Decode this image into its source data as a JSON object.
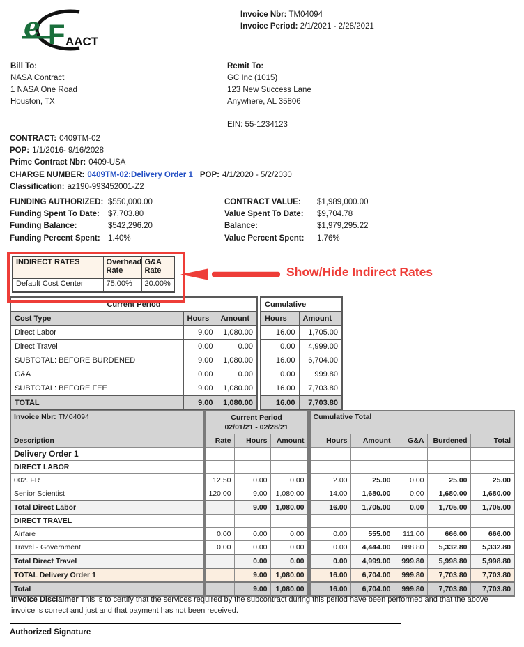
{
  "logo": {
    "e": "e",
    "f": "F",
    "aact": "AACT",
    "green": "#1a6f3c",
    "black": "#111111"
  },
  "invoice_header": {
    "nbr_label": "Invoice Nbr:",
    "nbr": "TM04094",
    "period_label": "Invoice Period:",
    "period": "2/1/2021 - 2/28/2021"
  },
  "bill_to": {
    "label": "Bill To:",
    "lines": [
      "NASA Contract",
      "1 NASA One Road",
      "Houston, TX"
    ]
  },
  "remit_to": {
    "label": "Remit To:",
    "lines": [
      "GC Inc (1015)",
      "123 New Success Lane",
      "Anywhere, AL  35806"
    ],
    "ein": "EIN: 55-1234123"
  },
  "contract": {
    "contract_label": "CONTRACT:",
    "contract_value": "0409TM-02",
    "pop_label": "POP:",
    "pop_value": "1/1/2016- 9/16/2028",
    "prime_label": "Prime Contract Nbr:",
    "prime_value": "0409-USA",
    "charge_label": "CHARGE NUMBER:",
    "charge_value": "0409TM-02:Delivery Order 1",
    "charge_pop_label": "POP:",
    "charge_pop_value": "4/1/2020  - 5/2/2030",
    "classification_label": "Classification:",
    "classification_value": "az190-993452001-Z2"
  },
  "funding": {
    "left": [
      [
        "FUNDING AUTHORIZED:",
        "$550,000.00"
      ],
      [
        "Funding Spent To Date:",
        "$7,703.80"
      ],
      [
        "Funding Balance:",
        "$542,296.20"
      ],
      [
        "Funding Percent Spent:",
        "1.40%"
      ]
    ],
    "right": [
      [
        "CONTRACT VALUE:",
        "$1,989,000.00"
      ],
      [
        "Value Spent To Date:",
        "$9,704.78"
      ],
      [
        "Balance:",
        "$1,979,295.22"
      ],
      [
        "Value Percent Spent:",
        "1.76%"
      ]
    ]
  },
  "indirect_rates": {
    "headers": [
      "INDIRECT RATES",
      "Overhead Rate",
      "G&A Rate"
    ],
    "row": [
      "Default Cost Center",
      "75.00%",
      "20.00%"
    ],
    "annotation": "Show/Hide Indirect Rates",
    "accent_color": "#ee3d38"
  },
  "summary": {
    "current_period_header": "Current Period",
    "cumulative_header": "Cumulative",
    "col_headers": [
      "Cost Type",
      "Hours",
      "Amount",
      "Hours",
      "Amount"
    ],
    "rows": [
      {
        "label": "Direct Labor",
        "cells": [
          "9.00",
          "1,080.00",
          "16.00",
          "1,705.00"
        ],
        "style": "normal"
      },
      {
        "label": "Direct Travel",
        "cells": [
          "0.00",
          "0.00",
          "0.00",
          "4,999.00"
        ],
        "style": "normal"
      },
      {
        "label": "SUBTOTAL: BEFORE BURDENED",
        "cells": [
          "9.00",
          "1,080.00",
          "16.00",
          "6,704.00"
        ],
        "style": "normal"
      },
      {
        "label": "G&A",
        "cells": [
          "0.00",
          "0.00",
          "0.00",
          "999.80"
        ],
        "style": "normal"
      },
      {
        "label": "SUBTOTAL: BEFORE FEE",
        "cells": [
          "9.00",
          "1,080.00",
          "16.00",
          "7,703.80"
        ],
        "style": "normal"
      },
      {
        "label": "TOTAL",
        "cells": [
          "9.00",
          "1,080.00",
          "16.00",
          "7,703.80"
        ],
        "style": "total"
      }
    ]
  },
  "detail": {
    "invoice_label": "Invoice Nbr:",
    "invoice_value": "TM04094",
    "current_period_title": "Current Period",
    "current_period_range": "02/01/21 - 02/28/21",
    "cumulative_title": "Cumulative Total",
    "col_headers": [
      "Description",
      "Rate",
      "Hours",
      "Amount",
      "Hours",
      "Amount",
      "G&A",
      "Burdened",
      "Total"
    ],
    "rows": [
      {
        "label": "Delivery Order 1",
        "cells": [
          "",
          "",
          "",
          "",
          "",
          "",
          "",
          ""
        ],
        "style": "group"
      },
      {
        "label": "DIRECT LABOR",
        "cells": [
          "",
          "",
          "",
          "",
          "",
          "",
          "",
          ""
        ],
        "style": "section"
      },
      {
        "label": "002. FR",
        "cells": [
          "12.50",
          "0.00",
          "0.00",
          "2.00",
          "25.00",
          "0.00",
          "25.00",
          "25.00"
        ],
        "style": "item"
      },
      {
        "label": "Senior Scientist",
        "cells": [
          "120.00",
          "9.00",
          "1,080.00",
          "14.00",
          "1,680.00",
          "0.00",
          "1,680.00",
          "1,680.00"
        ],
        "style": "item"
      },
      {
        "label": "Total Direct Labor",
        "cells": [
          "",
          "9.00",
          "1,080.00",
          "16.00",
          "1,705.00",
          "0.00",
          "1,705.00",
          "1,705.00"
        ],
        "style": "subtotal"
      },
      {
        "label": "DIRECT TRAVEL",
        "cells": [
          "",
          "",
          "",
          "",
          "",
          "",
          "",
          ""
        ],
        "style": "section"
      },
      {
        "label": "Airfare",
        "cells": [
          "0.00",
          "0.00",
          "0.00",
          "0.00",
          "555.00",
          "111.00",
          "666.00",
          "666.00"
        ],
        "style": "item"
      },
      {
        "label": "Travel - Government",
        "cells": [
          "0.00",
          "0.00",
          "0.00",
          "0.00",
          "4,444.00",
          "888.80",
          "5,332.80",
          "5,332.80"
        ],
        "style": "item"
      },
      {
        "label": "Total Direct Travel",
        "cells": [
          "",
          "0.00",
          "0.00",
          "0.00",
          "4,999.00",
          "999.80",
          "5,998.80",
          "5,998.80"
        ],
        "style": "subtotal"
      },
      {
        "label": "TOTAL Delivery Order 1",
        "cells": [
          "",
          "9.00",
          "1,080.00",
          "16.00",
          "6,704.00",
          "999.80",
          "7,703.80",
          "7,703.80"
        ],
        "style": "grandtotal"
      },
      {
        "label": "Total",
        "cells": [
          "",
          "9.00",
          "1,080.00",
          "16.00",
          "6,704.00",
          "999.80",
          "7,703.80",
          "7,703.80"
        ],
        "style": "final"
      }
    ]
  },
  "footer": {
    "disclaimer_label": "Invoice Disclaimer",
    "disclaimer_text": "This is to certify that the services required by the subcontract during this period have been performed and that the above invoice is correct and just and that payment has not been received.",
    "signature_label": "Authorized  Signature"
  }
}
